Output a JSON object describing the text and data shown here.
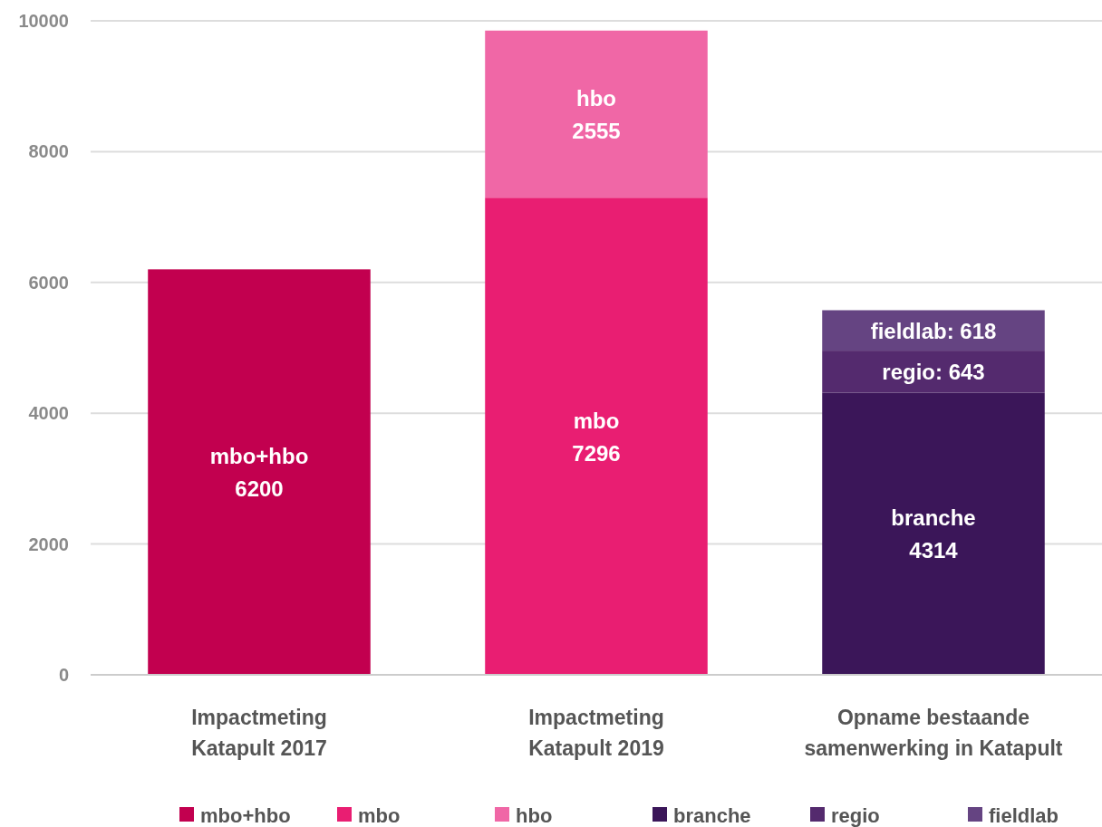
{
  "chart_data": {
    "type": "bar",
    "stacked": true,
    "categories": [
      "Impactmeting\nKatapult 2017",
      "Impactmeting\nKatapult 2019",
      "Opname bestaande\nsamenwerking in Katapult"
    ],
    "series": [
      {
        "name": "mbo+hbo",
        "color": "#c2004f",
        "values": [
          6200,
          null,
          null
        ],
        "value_labels": [
          "mbo+hbo\n6200",
          null,
          null
        ]
      },
      {
        "name": "mbo",
        "color": "#e91e72",
        "values": [
          null,
          7296,
          null
        ],
        "value_labels": [
          null,
          "mbo\n7296",
          null
        ]
      },
      {
        "name": "hbo",
        "color": "#f067a6",
        "values": [
          null,
          2555,
          null
        ],
        "value_labels": [
          null,
          "hbo\n2555",
          null
        ]
      },
      {
        "name": "branche",
        "color": "#3b1659",
        "values": [
          null,
          null,
          4314
        ],
        "value_labels": [
          null,
          null,
          "branche\n4314"
        ]
      },
      {
        "name": "regio",
        "color": "#542a6e",
        "values": [
          null,
          null,
          643
        ],
        "value_labels": [
          null,
          null,
          "regio: 643"
        ]
      },
      {
        "name": "fieldlab",
        "color": "#654482",
        "values": [
          null,
          null,
          618
        ],
        "value_labels": [
          null,
          null,
          "fieldlab: 618"
        ]
      }
    ],
    "ylim": [
      0,
      10000
    ],
    "yticks": [
      0,
      2000,
      4000,
      6000,
      8000,
      10000
    ],
    "grid": "y",
    "legend": "bottom"
  }
}
